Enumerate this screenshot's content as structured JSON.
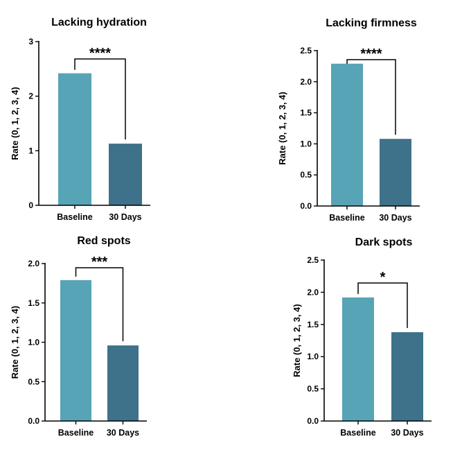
{
  "colors": {
    "baseline": "#57a4b6",
    "day30": "#3e718a",
    "axis": "#000000"
  },
  "chart_data": [
    {
      "type": "bar",
      "title": "Lacking hydration",
      "ylabel": "Rate (0, 1, 2, 3, 4)",
      "categories": [
        "Baseline",
        "30 Days"
      ],
      "values": [
        2.42,
        1.13
      ],
      "ylim": [
        0,
        3
      ],
      "yticks": [
        "0",
        "1",
        "2",
        "3"
      ],
      "significance": "****",
      "grid": false
    },
    {
      "type": "bar",
      "title": "Lacking firmness",
      "ylabel": "Rate (0, 1, 2, 3, 4)",
      "categories": [
        "Baseline",
        "30 Days"
      ],
      "values": [
        2.29,
        1.08
      ],
      "ylim": [
        0,
        2.5
      ],
      "yticks": [
        "0.0",
        "0.5",
        "1.0",
        "1.5",
        "2.0",
        "2.5"
      ],
      "significance": "****",
      "grid": false
    },
    {
      "type": "bar",
      "title": "Red spots",
      "ylabel": "Rate (0, 1, 2, 3, 4)",
      "categories": [
        "Baseline",
        "30 Days"
      ],
      "values": [
        1.79,
        0.96
      ],
      "ylim": [
        0,
        2.0
      ],
      "yticks": [
        "0.0",
        "0.5",
        "1.0",
        "1.5",
        "2.0"
      ],
      "significance": "***",
      "grid": false
    },
    {
      "type": "bar",
      "title": "Dark spots",
      "ylabel": "Rate (0, 1, 2, 3, 4)",
      "categories": [
        "Baseline",
        "30 Days"
      ],
      "values": [
        1.92,
        1.38
      ],
      "ylim": [
        0,
        2.5
      ],
      "yticks": [
        "0.0",
        "0.5",
        "1.0",
        "1.5",
        "2.0",
        "2.5"
      ],
      "significance": "*",
      "grid": false
    }
  ]
}
